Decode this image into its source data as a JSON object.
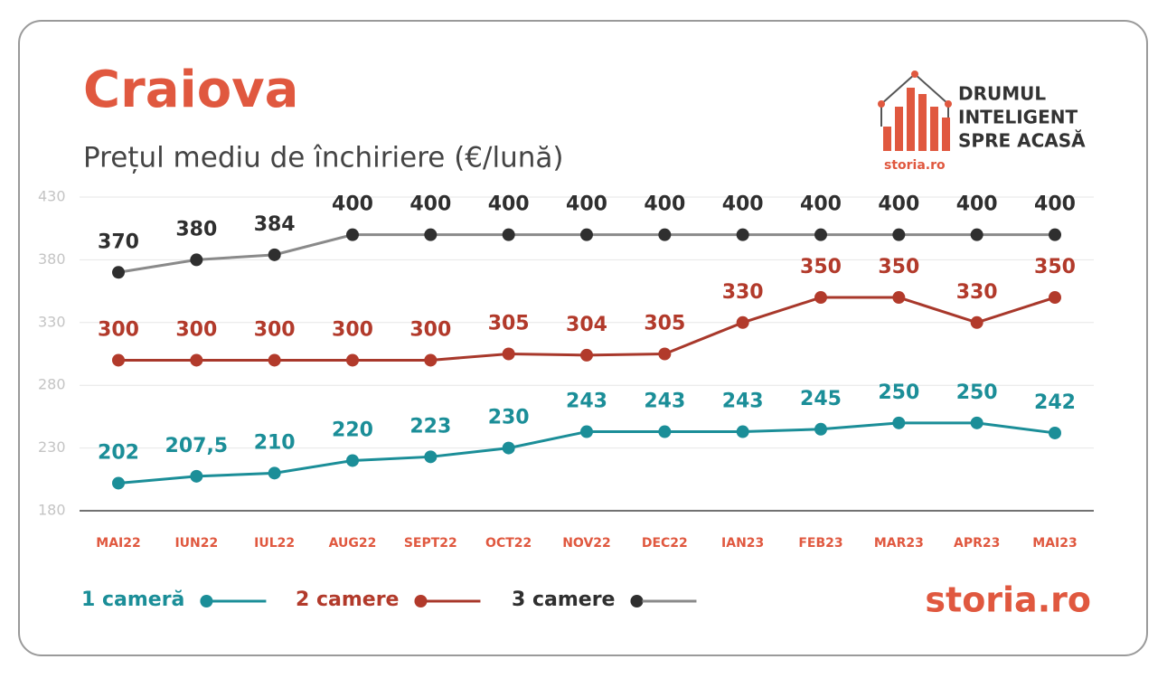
{
  "chart_data": {
    "type": "line",
    "title": "Craiova",
    "subtitle": "Prețul mediu de închiriere (€/lună)",
    "categories": [
      "MAI22",
      "IUN22",
      "IUL22",
      "AUG22",
      "SEPT22",
      "OCT22",
      "NOV22",
      "DEC22",
      "IAN23",
      "FEB23",
      "MAR23",
      "APR23",
      "MAI23"
    ],
    "series": [
      {
        "name": "1 cameră",
        "color": "#1b8e98",
        "line_color": "#1b8e98",
        "values": [
          202,
          207.5,
          210,
          220,
          223,
          230,
          243,
          243,
          243,
          245,
          250,
          250,
          242
        ],
        "value_labels": [
          "202",
          "207,5",
          "210",
          "220",
          "223",
          "230",
          "243",
          "243",
          "243",
          "245",
          "250",
          "250",
          "242"
        ]
      },
      {
        "name": "2 camere",
        "color": "#b23a2b",
        "line_color": "#a8382b",
        "values": [
          300,
          300,
          300,
          300,
          300,
          305,
          304,
          305,
          330,
          350,
          350,
          330,
          350
        ]
      },
      {
        "name": "3 camere",
        "color": "#2f2f2f",
        "line_color": "#8a8a8a",
        "values": [
          370,
          380,
          384,
          400,
          400,
          400,
          400,
          400,
          400,
          400,
          400,
          400,
          400
        ]
      }
    ],
    "ylim": [
      180,
      430
    ],
    "yticks": [
      180,
      230,
      280,
      330,
      380,
      430
    ],
    "grid": true,
    "branding": {
      "tagline": [
        "DRUMUL",
        "INTELIGENT",
        "SPRE ACASĂ"
      ],
      "logo": "storia.ro"
    }
  }
}
